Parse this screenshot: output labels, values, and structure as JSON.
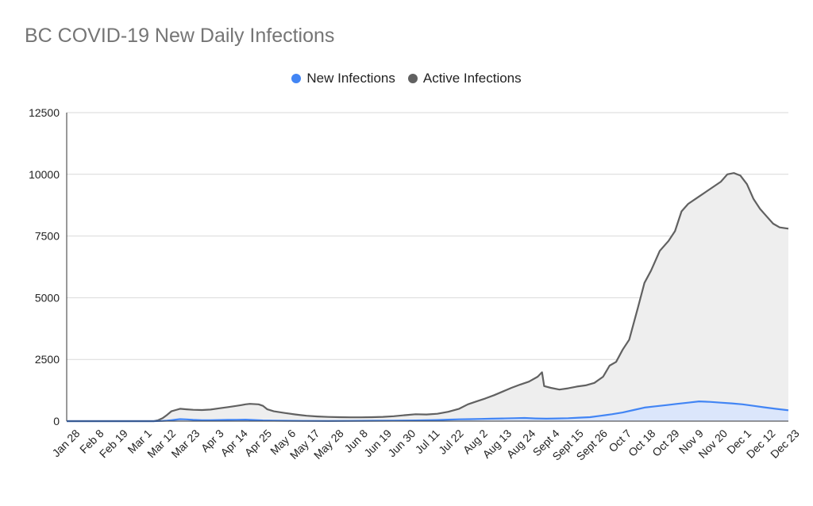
{
  "chart_data": {
    "type": "area",
    "title": "BC COVID-19 New Daily Infections",
    "xlabel": "",
    "ylabel": "",
    "ylim": [
      0,
      12500
    ],
    "y_ticks": [
      "0",
      "2500",
      "5000",
      "7500",
      "10000",
      "12500"
    ],
    "grid": true,
    "legend_position": "top",
    "x_tick_labels": [
      "Jan 28",
      "Feb 8",
      "Feb 19",
      "Mar 1",
      "Mar 12",
      "Mar 23",
      "Apr 3",
      "Apr 14",
      "Apr 25",
      "May 6",
      "May 17",
      "May 28",
      "Jun 8",
      "Jun 19",
      "Jun 30",
      "Jul 11",
      "Jul 22",
      "Aug 2",
      "Aug 13",
      "Aug 24",
      "Sept 4",
      "Sept 15",
      "Sept 26",
      "Oct 7",
      "Oct 18",
      "Oct 29",
      "Nov 9",
      "Nov 20",
      "Dec 1",
      "Dec 12",
      "Dec 23"
    ],
    "series": [
      {
        "name": "New Infections",
        "color": "#4285f4",
        "points": [
          [
            0,
            0
          ],
          [
            40,
            0
          ],
          [
            44,
            10
          ],
          [
            46,
            20
          ],
          [
            48,
            40
          ],
          [
            50,
            60
          ],
          [
            52,
            80
          ],
          [
            55,
            70
          ],
          [
            58,
            50
          ],
          [
            62,
            40
          ],
          [
            66,
            40
          ],
          [
            70,
            45
          ],
          [
            74,
            50
          ],
          [
            78,
            55
          ],
          [
            82,
            60
          ],
          [
            86,
            45
          ],
          [
            90,
            30
          ],
          [
            95,
            20
          ],
          [
            100,
            15
          ],
          [
            110,
            10
          ],
          [
            120,
            8
          ],
          [
            130,
            10
          ],
          [
            140,
            15
          ],
          [
            150,
            20
          ],
          [
            155,
            25
          ],
          [
            160,
            30
          ],
          [
            165,
            35
          ],
          [
            170,
            45
          ],
          [
            175,
            60
          ],
          [
            180,
            75
          ],
          [
            185,
            80
          ],
          [
            190,
            90
          ],
          [
            195,
            100
          ],
          [
            200,
            110
          ],
          [
            205,
            120
          ],
          [
            210,
            130
          ],
          [
            215,
            110
          ],
          [
            220,
            100
          ],
          [
            225,
            110
          ],
          [
            230,
            120
          ],
          [
            235,
            140
          ],
          [
            240,
            160
          ],
          [
            245,
            220
          ],
          [
            250,
            280
          ],
          [
            255,
            350
          ],
          [
            260,
            450
          ],
          [
            265,
            550
          ],
          [
            270,
            600
          ],
          [
            275,
            650
          ],
          [
            280,
            700
          ],
          [
            285,
            750
          ],
          [
            290,
            800
          ],
          [
            295,
            780
          ],
          [
            300,
            750
          ],
          [
            305,
            720
          ],
          [
            310,
            680
          ],
          [
            315,
            620
          ],
          [
            320,
            560
          ],
          [
            325,
            500
          ],
          [
            330,
            450
          ],
          [
            331,
            440
          ]
        ]
      },
      {
        "name": "Active Infections",
        "color": "#616161",
        "points": [
          [
            0,
            0
          ],
          [
            40,
            0
          ],
          [
            42,
            40
          ],
          [
            44,
            120
          ],
          [
            46,
            250
          ],
          [
            48,
            400
          ],
          [
            50,
            450
          ],
          [
            52,
            500
          ],
          [
            55,
            480
          ],
          [
            58,
            460
          ],
          [
            62,
            450
          ],
          [
            66,
            470
          ],
          [
            70,
            520
          ],
          [
            74,
            570
          ],
          [
            78,
            620
          ],
          [
            80,
            650
          ],
          [
            82,
            680
          ],
          [
            84,
            700
          ],
          [
            88,
            680
          ],
          [
            90,
            620
          ],
          [
            92,
            480
          ],
          [
            95,
            400
          ],
          [
            100,
            330
          ],
          [
            105,
            270
          ],
          [
            110,
            220
          ],
          [
            115,
            190
          ],
          [
            120,
            170
          ],
          [
            125,
            160
          ],
          [
            130,
            155
          ],
          [
            135,
            155
          ],
          [
            140,
            160
          ],
          [
            145,
            175
          ],
          [
            150,
            200
          ],
          [
            155,
            240
          ],
          [
            160,
            280
          ],
          [
            165,
            270
          ],
          [
            170,
            300
          ],
          [
            175,
            380
          ],
          [
            180,
            500
          ],
          [
            184,
            680
          ],
          [
            188,
            800
          ],
          [
            192,
            920
          ],
          [
            196,
            1050
          ],
          [
            200,
            1200
          ],
          [
            204,
            1350
          ],
          [
            208,
            1480
          ],
          [
            212,
            1600
          ],
          [
            216,
            1800
          ],
          [
            218,
            1980
          ],
          [
            219,
            1420
          ],
          [
            222,
            1350
          ],
          [
            226,
            1280
          ],
          [
            230,
            1330
          ],
          [
            234,
            1400
          ],
          [
            238,
            1450
          ],
          [
            242,
            1550
          ],
          [
            246,
            1800
          ],
          [
            249,
            2250
          ],
          [
            252,
            2400
          ],
          [
            255,
            2900
          ],
          [
            258,
            3300
          ],
          [
            262,
            4600
          ],
          [
            265,
            5600
          ],
          [
            268,
            6100
          ],
          [
            272,
            6900
          ],
          [
            276,
            7300
          ],
          [
            279,
            7700
          ],
          [
            282,
            8500
          ],
          [
            285,
            8800
          ],
          [
            290,
            9100
          ],
          [
            295,
            9400
          ],
          [
            300,
            9700
          ],
          [
            303,
            10000
          ],
          [
            306,
            10050
          ],
          [
            309,
            9950
          ],
          [
            312,
            9600
          ],
          [
            315,
            9000
          ],
          [
            318,
            8600
          ],
          [
            321,
            8300
          ],
          [
            324,
            8000
          ],
          [
            327,
            7850
          ],
          [
            331,
            7800
          ]
        ]
      }
    ]
  }
}
